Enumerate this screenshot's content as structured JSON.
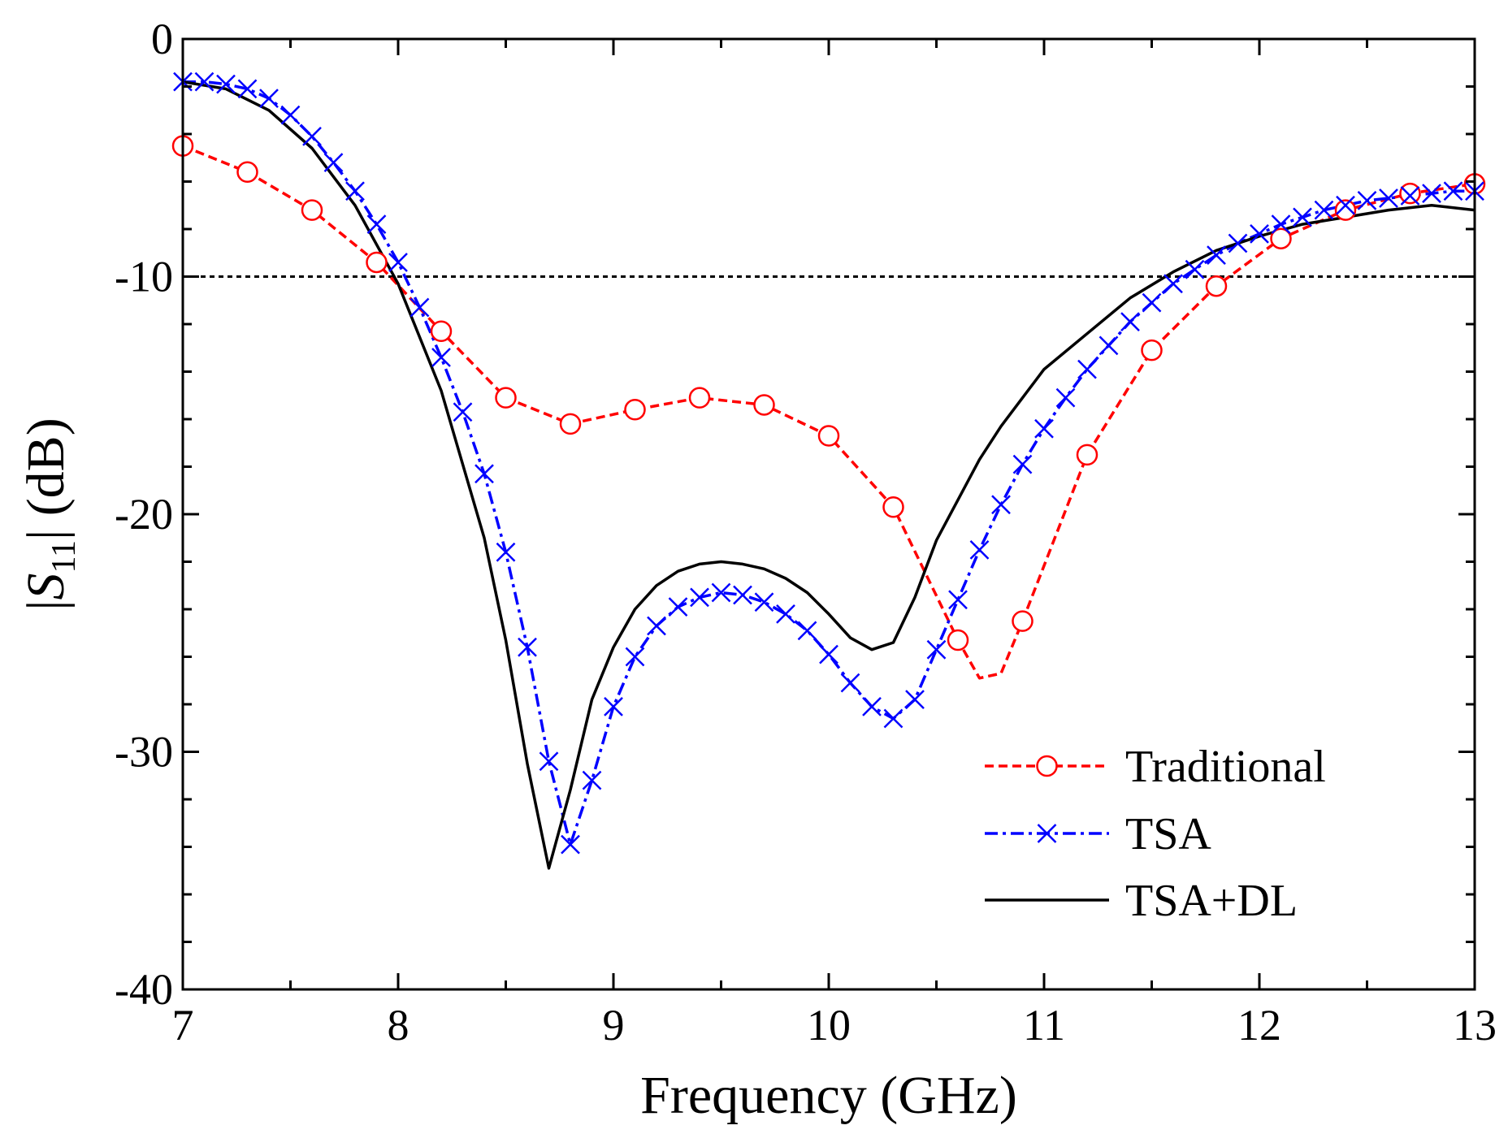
{
  "chart_data": {
    "type": "line",
    "xlabel": "Frequency (GHz)",
    "ylabel": {
      "pre": "|",
      "var": "S",
      "sub": "11",
      "post": "| (dB)"
    },
    "xlim": [
      7,
      13
    ],
    "ylim": [
      -40,
      0
    ],
    "xticks": [
      7,
      8,
      9,
      10,
      11,
      12,
      13
    ],
    "yticks": [
      0,
      -10,
      -20,
      -30,
      -40
    ],
    "xtick_labels": [
      "7",
      "8",
      "9",
      "10",
      "11",
      "12",
      "13"
    ],
    "ytick_labels": [
      "0",
      "-10",
      "-20",
      "-30",
      "-40"
    ],
    "reference_line": {
      "y": -10,
      "style": "dotted",
      "color": "#000000"
    },
    "grid": false,
    "legend_position": "bottom-right",
    "series": [
      {
        "name": "Traditional",
        "color": "#ff0000",
        "line_style": "dashed",
        "marker": "open-circle",
        "x": [
          7.0,
          7.3,
          7.6,
          7.9,
          8.2,
          8.5,
          8.8,
          9.1,
          9.4,
          9.7,
          10.0,
          10.3,
          10.6,
          10.7,
          10.8,
          10.9,
          11.2,
          11.5,
          11.8,
          12.1,
          12.4,
          12.7,
          13.0
        ],
        "y": [
          -4.5,
          -5.6,
          -7.2,
          -9.4,
          -12.3,
          -15.1,
          -16.2,
          -15.6,
          -15.1,
          -15.4,
          -16.7,
          -19.7,
          -25.3,
          -26.9,
          -26.7,
          -24.5,
          -17.5,
          -13.1,
          -10.4,
          -8.4,
          -7.2,
          -6.5,
          -6.1
        ],
        "marker_x": [
          7.0,
          7.3,
          7.6,
          7.9,
          8.2,
          8.5,
          8.8,
          9.1,
          9.4,
          9.7,
          10.0,
          10.3,
          10.6,
          10.9,
          11.2,
          11.5,
          11.8,
          12.1,
          12.4,
          12.7,
          13.0
        ],
        "marker_y": [
          -4.5,
          -5.6,
          -7.2,
          -9.4,
          -12.3,
          -15.1,
          -16.2,
          -15.6,
          -15.1,
          -15.4,
          -16.7,
          -19.7,
          -25.3,
          -24.5,
          -17.5,
          -13.1,
          -10.4,
          -8.4,
          -7.2,
          -6.5,
          -6.1
        ]
      },
      {
        "name": "TSA",
        "color": "#0000ff",
        "line_style": "dash-dot",
        "marker": "x",
        "x": [
          7.0,
          7.1,
          7.2,
          7.3,
          7.4,
          7.5,
          7.6,
          7.7,
          7.8,
          7.9,
          8.0,
          8.1,
          8.2,
          8.3,
          8.4,
          8.5,
          8.6,
          8.7,
          8.8,
          8.9,
          9.0,
          9.1,
          9.2,
          9.3,
          9.4,
          9.5,
          9.6,
          9.7,
          9.8,
          9.9,
          10.0,
          10.1,
          10.2,
          10.3,
          10.4,
          10.5,
          10.6,
          10.7,
          10.8,
          10.9,
          11.0,
          11.1,
          11.2,
          11.3,
          11.4,
          11.5,
          11.6,
          11.7,
          11.8,
          11.9,
          12.0,
          12.1,
          12.2,
          12.3,
          12.4,
          12.5,
          12.6,
          12.7,
          12.8,
          12.9,
          13.0
        ],
        "y": [
          -1.8,
          -1.8,
          -1.9,
          -2.1,
          -2.5,
          -3.2,
          -4.1,
          -5.2,
          -6.4,
          -7.8,
          -9.4,
          -11.3,
          -13.4,
          -15.7,
          -18.3,
          -21.6,
          -25.6,
          -30.4,
          -33.9,
          -31.2,
          -28.1,
          -26.0,
          -24.7,
          -23.9,
          -23.5,
          -23.3,
          -23.4,
          -23.7,
          -24.2,
          -24.9,
          -25.9,
          -27.1,
          -28.1,
          -28.6,
          -27.8,
          -25.7,
          -23.6,
          -21.5,
          -19.6,
          -17.9,
          -16.4,
          -15.1,
          -13.9,
          -12.9,
          -11.9,
          -11.1,
          -10.3,
          -9.7,
          -9.1,
          -8.6,
          -8.2,
          -7.8,
          -7.5,
          -7.2,
          -7.0,
          -6.8,
          -6.7,
          -6.6,
          -6.5,
          -6.4,
          -6.4
        ]
      },
      {
        "name": "TSA+DL",
        "color": "#000000",
        "line_style": "solid",
        "marker": "none",
        "x": [
          7.0,
          7.2,
          7.4,
          7.6,
          7.8,
          8.0,
          8.2,
          8.4,
          8.5,
          8.6,
          8.7,
          8.8,
          8.9,
          9.0,
          9.1,
          9.2,
          9.3,
          9.4,
          9.5,
          9.6,
          9.7,
          9.8,
          9.9,
          10.0,
          10.1,
          10.2,
          10.3,
          10.4,
          10.5,
          10.6,
          10.7,
          10.8,
          10.9,
          11.0,
          11.2,
          11.4,
          11.6,
          11.8,
          12.0,
          12.2,
          12.4,
          12.6,
          12.8,
          13.0
        ],
        "y": [
          -1.8,
          -2.1,
          -3.0,
          -4.6,
          -7.0,
          -10.3,
          -14.8,
          -21.0,
          -25.3,
          -30.5,
          -34.9,
          -31.6,
          -27.8,
          -25.6,
          -24.0,
          -23.0,
          -22.4,
          -22.1,
          -22.0,
          -22.1,
          -22.3,
          -22.7,
          -23.3,
          -24.2,
          -25.2,
          -25.7,
          -25.4,
          -23.5,
          -21.1,
          -19.4,
          -17.7,
          -16.3,
          -15.1,
          -13.9,
          -12.4,
          -10.9,
          -9.8,
          -8.9,
          -8.3,
          -7.8,
          -7.5,
          -7.2,
          -7.0,
          -7.2
        ]
      }
    ]
  }
}
